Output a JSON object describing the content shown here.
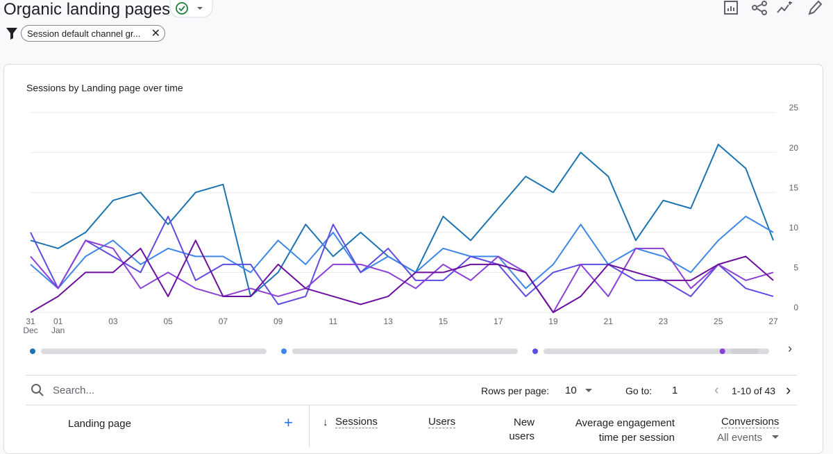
{
  "header": {
    "title": "Organic landing pages",
    "filter": "Session default channel gr..."
  },
  "chart_data": {
    "type": "line",
    "title": "Sessions by Landing page over time",
    "categories": [
      "31",
      "01",
      null,
      "03",
      null,
      "05",
      null,
      "07",
      null,
      "09",
      null,
      "11",
      null,
      "13",
      null,
      "15",
      null,
      "17",
      null,
      "19",
      null,
      "21",
      null,
      "23",
      null,
      "25",
      null,
      "27"
    ],
    "category_sublabels": [
      "Dec",
      "Jan",
      null,
      null,
      null,
      null,
      null,
      null,
      null,
      null,
      null,
      null,
      null,
      null,
      null,
      null,
      null,
      null,
      null,
      null,
      null,
      null,
      null,
      null,
      null,
      null,
      null,
      null
    ],
    "ylim": [
      0,
      25
    ],
    "yticks": [
      0,
      5,
      10,
      15,
      20,
      25
    ],
    "grid": true,
    "y_axis_side": "right",
    "series": [
      {
        "color": "#1a73b0",
        "values": [
          9,
          8,
          10,
          14,
          15,
          11,
          15,
          16,
          2,
          5,
          11,
          7,
          10,
          7,
          5,
          12,
          9,
          13,
          17,
          15,
          20,
          17,
          9,
          14,
          13,
          21,
          18,
          9
        ]
      },
      {
        "color": "#3d86e8",
        "values": [
          6,
          3,
          7,
          9,
          6,
          8,
          7,
          7,
          5,
          9,
          6,
          10,
          5,
          7,
          5,
          8,
          7,
          7,
          3,
          6,
          11,
          6,
          8,
          7,
          5,
          9,
          12,
          10
        ]
      },
      {
        "color": "#5b4de3",
        "values": [
          10,
          3,
          9,
          7,
          5,
          12,
          4,
          6,
          6,
          1,
          2,
          11,
          5,
          8,
          4,
          4,
          7,
          6,
          2,
          5,
          6,
          6,
          4,
          4,
          2,
          6,
          3,
          2
        ]
      },
      {
        "color": "#8a3fd6",
        "values": [
          7,
          3,
          9,
          8,
          3,
          5,
          3,
          2,
          3,
          2,
          3,
          6,
          6,
          5,
          3,
          6,
          4,
          7,
          5,
          0,
          6,
          2,
          8,
          8,
          3,
          6,
          4,
          5
        ]
      },
      {
        "color": "#6a0f9e",
        "values": [
          0,
          2,
          5,
          5,
          8,
          2,
          9,
          2,
          2,
          6,
          3,
          2,
          1,
          2,
          5,
          5,
          6,
          6,
          5,
          0,
          2,
          6,
          5,
          4,
          4,
          6,
          7,
          4
        ]
      }
    ]
  },
  "table": {
    "search": "Search...",
    "rows_per_page_label": "Rows per page:",
    "rows_per_page": "10",
    "goto_label": "Go to:",
    "goto": "1",
    "range": "1-10 of 43",
    "columns": [
      "Landing page",
      "Sessions",
      "Users",
      "New users",
      "Average engagement time per session",
      "Conversions"
    ],
    "conversions_filter": "All events"
  }
}
